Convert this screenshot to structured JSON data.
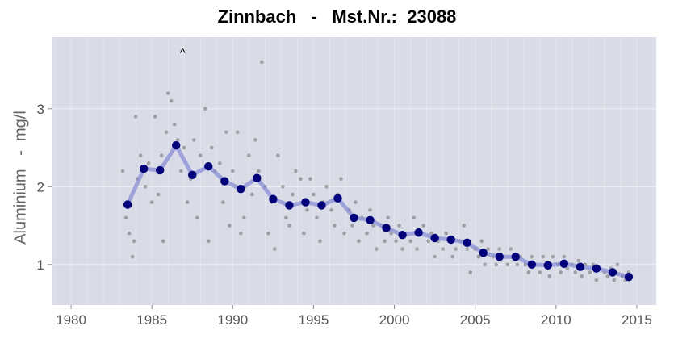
{
  "title": "Zinnbach   -   Mst.Nr.:  23088",
  "chart_data": {
    "type": "scatter",
    "title": "Zinnbach   -   Mst.Nr.:  23088",
    "ylabel": "Aluminium   -  mg/l",
    "xlabel": "",
    "xlim": [
      1978.8,
      2016.2
    ],
    "ylim": [
      0.48,
      3.92
    ],
    "x_ticks": [
      1980,
      1985,
      1990,
      1995,
      2000,
      2005,
      2010,
      2015
    ],
    "y_ticks": [
      1,
      2,
      3
    ],
    "grid": true,
    "annotations": [
      {
        "text": "^",
        "x": 1986.9,
        "y": 3.75
      }
    ],
    "series": [
      {
        "kind": "mean-line",
        "color": "#00007a",
        "line_color": "#8a8fd6",
        "x": [
          1983.5,
          1984.5,
          1985.5,
          1986.5,
          1987.5,
          1988.5,
          1989.5,
          1990.5,
          1991.5,
          1992.5,
          1993.5,
          1994.5,
          1995.5,
          1996.5,
          1997.5,
          1998.5,
          1999.5,
          2000.5,
          2001.5,
          2002.5,
          2003.5,
          2004.5,
          2005.5,
          2006.5,
          2007.5,
          2008.5,
          2009.5,
          2010.5,
          2011.5,
          2012.5,
          2013.5,
          2014.5
        ],
        "y": [
          1.77,
          2.23,
          2.21,
          2.53,
          2.15,
          2.26,
          2.07,
          1.97,
          2.11,
          1.84,
          1.76,
          1.8,
          1.76,
          1.85,
          1.6,
          1.57,
          1.47,
          1.38,
          1.41,
          1.34,
          1.32,
          1.28,
          1.15,
          1.1,
          1.1,
          1.0,
          0.99,
          1.01,
          0.97,
          0.95,
          0.9,
          0.84
        ]
      },
      {
        "kind": "raw-samples",
        "color": "#777777",
        "points": [
          [
            1983.2,
            2.2
          ],
          [
            1983.4,
            1.6
          ],
          [
            1983.6,
            1.4
          ],
          [
            1983.8,
            1.1
          ],
          [
            1983.9,
            1.3
          ],
          [
            1984.0,
            2.9
          ],
          [
            1984.1,
            2.1
          ],
          [
            1984.3,
            2.4
          ],
          [
            1984.6,
            2.0
          ],
          [
            1984.8,
            2.3
          ],
          [
            1985.0,
            1.8
          ],
          [
            1985.2,
            2.9
          ],
          [
            1985.4,
            1.9
          ],
          [
            1985.6,
            2.4
          ],
          [
            1985.7,
            1.3
          ],
          [
            1985.9,
            2.7
          ],
          [
            1986.0,
            3.2
          ],
          [
            1986.2,
            3.1
          ],
          [
            1986.4,
            2.8
          ],
          [
            1986.6,
            2.6
          ],
          [
            1986.8,
            2.2
          ],
          [
            1987.0,
            2.5
          ],
          [
            1987.2,
            1.8
          ],
          [
            1987.4,
            2.1
          ],
          [
            1987.6,
            2.6
          ],
          [
            1987.8,
            1.6
          ],
          [
            1988.0,
            2.4
          ],
          [
            1988.3,
            3.0
          ],
          [
            1988.5,
            1.3
          ],
          [
            1988.7,
            2.5
          ],
          [
            1988.9,
            2.2
          ],
          [
            1989.2,
            2.3
          ],
          [
            1989.4,
            1.8
          ],
          [
            1989.6,
            2.7
          ],
          [
            1989.8,
            1.5
          ],
          [
            1990.0,
            2.2
          ],
          [
            1990.3,
            2.7
          ],
          [
            1990.5,
            1.4
          ],
          [
            1990.7,
            1.6
          ],
          [
            1991.0,
            2.4
          ],
          [
            1991.2,
            1.9
          ],
          [
            1991.4,
            2.6
          ],
          [
            1991.6,
            2.2
          ],
          [
            1991.8,
            3.6
          ],
          [
            1992.0,
            2.0
          ],
          [
            1992.2,
            1.4
          ],
          [
            1992.4,
            1.8
          ],
          [
            1992.6,
            1.2
          ],
          [
            1992.8,
            2.4
          ],
          [
            1993.1,
            2.0
          ],
          [
            1993.3,
            1.6
          ],
          [
            1993.5,
            1.5
          ],
          [
            1993.7,
            1.9
          ],
          [
            1993.9,
            2.2
          ],
          [
            1994.2,
            2.1
          ],
          [
            1994.4,
            1.4
          ],
          [
            1994.6,
            1.7
          ],
          [
            1994.8,
            2.1
          ],
          [
            1995.0,
            1.9
          ],
          [
            1995.2,
            1.6
          ],
          [
            1995.4,
            1.3
          ],
          [
            1995.6,
            1.8
          ],
          [
            1995.8,
            2.0
          ],
          [
            1996.1,
            1.7
          ],
          [
            1996.3,
            1.5
          ],
          [
            1996.5,
            1.9
          ],
          [
            1996.7,
            2.1
          ],
          [
            1996.9,
            1.4
          ],
          [
            1997.2,
            1.7
          ],
          [
            1997.4,
            1.5
          ],
          [
            1997.6,
            1.8
          ],
          [
            1997.8,
            1.3
          ],
          [
            1998.0,
            1.6
          ],
          [
            1998.3,
            1.4
          ],
          [
            1998.5,
            1.7
          ],
          [
            1998.7,
            1.5
          ],
          [
            1998.9,
            1.2
          ],
          [
            1999.2,
            1.5
          ],
          [
            1999.4,
            1.3
          ],
          [
            1999.6,
            1.6
          ],
          [
            1999.8,
            1.4
          ],
          [
            2000.1,
            1.3
          ],
          [
            2000.3,
            1.5
          ],
          [
            2000.5,
            1.2
          ],
          [
            2000.7,
            1.4
          ],
          [
            2001.0,
            1.3
          ],
          [
            2001.2,
            1.6
          ],
          [
            2001.4,
            1.2
          ],
          [
            2001.6,
            1.4
          ],
          [
            2001.8,
            1.5
          ],
          [
            2002.1,
            1.3
          ],
          [
            2002.3,
            1.4
          ],
          [
            2002.5,
            1.1
          ],
          [
            2002.7,
            1.3
          ],
          [
            2003.0,
            1.2
          ],
          [
            2003.2,
            1.4
          ],
          [
            2003.4,
            1.3
          ],
          [
            2003.6,
            1.1
          ],
          [
            2003.8,
            1.2
          ],
          [
            2004.1,
            1.3
          ],
          [
            2004.3,
            1.5
          ],
          [
            2004.5,
            1.2
          ],
          [
            2004.7,
            0.9
          ],
          [
            2005.0,
            1.2
          ],
          [
            2005.2,
            1.1
          ],
          [
            2005.4,
            1.3
          ],
          [
            2005.6,
            1.0
          ],
          [
            2005.8,
            1.2
          ],
          [
            2006.1,
            1.1
          ],
          [
            2006.3,
            1.0
          ],
          [
            2006.5,
            1.2
          ],
          [
            2006.7,
            1.1
          ],
          [
            2007.0,
            1.0
          ],
          [
            2007.2,
            1.2
          ],
          [
            2007.4,
            1.1
          ],
          [
            2007.6,
            1.0
          ],
          [
            2007.8,
            1.1
          ],
          [
            2008.1,
            1.0
          ],
          [
            2008.3,
            0.9
          ],
          [
            2008.5,
            1.1
          ],
          [
            2008.7,
            1.0
          ],
          [
            2009.0,
            0.9
          ],
          [
            2009.2,
            1.1
          ],
          [
            2009.4,
            1.0
          ],
          [
            2009.6,
            0.85
          ],
          [
            2009.8,
            1.1
          ],
          [
            2010.1,
            1.0
          ],
          [
            2010.3,
            0.9
          ],
          [
            2010.5,
            1.1
          ],
          [
            2010.7,
            0.95
          ],
          [
            2011.0,
            1.0
          ],
          [
            2011.2,
            0.9
          ],
          [
            2011.4,
            1.05
          ],
          [
            2011.6,
            0.85
          ],
          [
            2011.8,
            1.0
          ],
          [
            2012.1,
            0.9
          ],
          [
            2012.3,
            1.0
          ],
          [
            2012.5,
            0.8
          ],
          [
            2012.7,
            0.95
          ],
          [
            2013.0,
            0.9
          ],
          [
            2013.2,
            0.85
          ],
          [
            2013.4,
            0.95
          ],
          [
            2013.6,
            0.8
          ],
          [
            2013.8,
            1.0
          ],
          [
            2014.1,
            0.85
          ],
          [
            2014.3,
            0.8
          ],
          [
            2014.5,
            0.9
          ]
        ]
      }
    ]
  }
}
